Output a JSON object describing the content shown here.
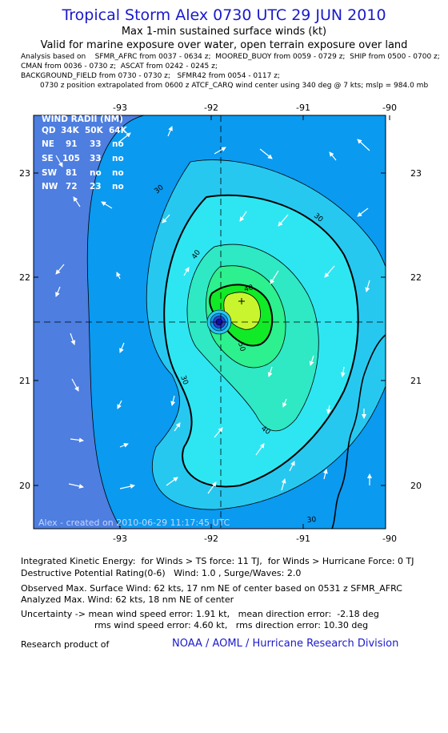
{
  "header": {
    "title": "Tropical Storm Alex 0730 UTC 29 JUN 2010",
    "subtitle1": "Max 1-min sustained surface winds (kt)",
    "subtitle2": "Valid for marine exposure over water, open terrain exposure over land",
    "meta_lines": [
      "Analysis based on    SFMR_AFRC from 0037 - 0634 z;  MOORED_BUOY from 0059 - 0729 z;  SHIP from 0500 - 0700 z;",
      "CMAN from 0036 - 0730 z;  ASCAT from 0242 - 0245 z;",
      "BACKGROUND_FIELD from 0730 - 0730 z;   SFMR42 from 0054 - 0117 z;",
      "0730 z position extrapolated from 0600 z ATCF_CARQ wind center using 340 deg @ 7 kts; mslp = 984.0 mb"
    ]
  },
  "map": {
    "lon_ticks": [
      "-93",
      "-92",
      "-91",
      "-90"
    ],
    "lat_ticks": [
      "23",
      "22",
      "21",
      "20"
    ],
    "contour_labels": [
      "30",
      "30",
      "40",
      "40",
      "50",
      "40",
      "30",
      "30"
    ],
    "created_label": "Alex - created on 2010-06-29 11:17:45 UTC",
    "center": {
      "lon": -91.87,
      "lat": 21.57
    },
    "colors": {
      "deep": "#4d7ee0",
      "blue": "#0a9af0",
      "light": "#27c8f0",
      "cyan": "#2ee6f2",
      "aqua": "#2fe8c4",
      "green": "#2df08f",
      "lime": "#11ea26",
      "yellow": "#c8f52d",
      "eye": "#1010a0"
    }
  },
  "wind_radii": {
    "title": "WIND RADII (NM)",
    "header": [
      "QD",
      "34K",
      "50K",
      "64K"
    ],
    "rows": [
      [
        "NE",
        "91",
        "33",
        "no"
      ],
      [
        "SE",
        "105",
        "33",
        "no"
      ],
      [
        "SW",
        "81",
        "no",
        "no"
      ],
      [
        "NW",
        "72",
        "23",
        "no"
      ]
    ]
  },
  "footer": {
    "ike": "Integrated Kinetic Energy:  for Winds > TS force: 11 TJ,  for Winds > Hurricane Force: 0 TJ",
    "dpr": "Destructive Potential Rating(0-6)   Wind: 1.0 , Surge/Waves: 2.0",
    "obs_max": "Observed Max. Surface Wind: 62 kts, 17 nm NE of center based on 0531 z SFMR_AFRC",
    "analyzed_max": "Analyzed Max. Wind: 62 kts, 18 nm NE of center",
    "unc1": "Uncertainty -> mean wind speed error: 1.91 kt,   mean direction error:  -2.18 deg",
    "unc2": "rms wind speed error: 4.60 kt,   rms direction error: 10.30 deg",
    "credit_prefix": "Research product of",
    "credit_org": "NOAA / AOML / Hurricane Research Division"
  }
}
